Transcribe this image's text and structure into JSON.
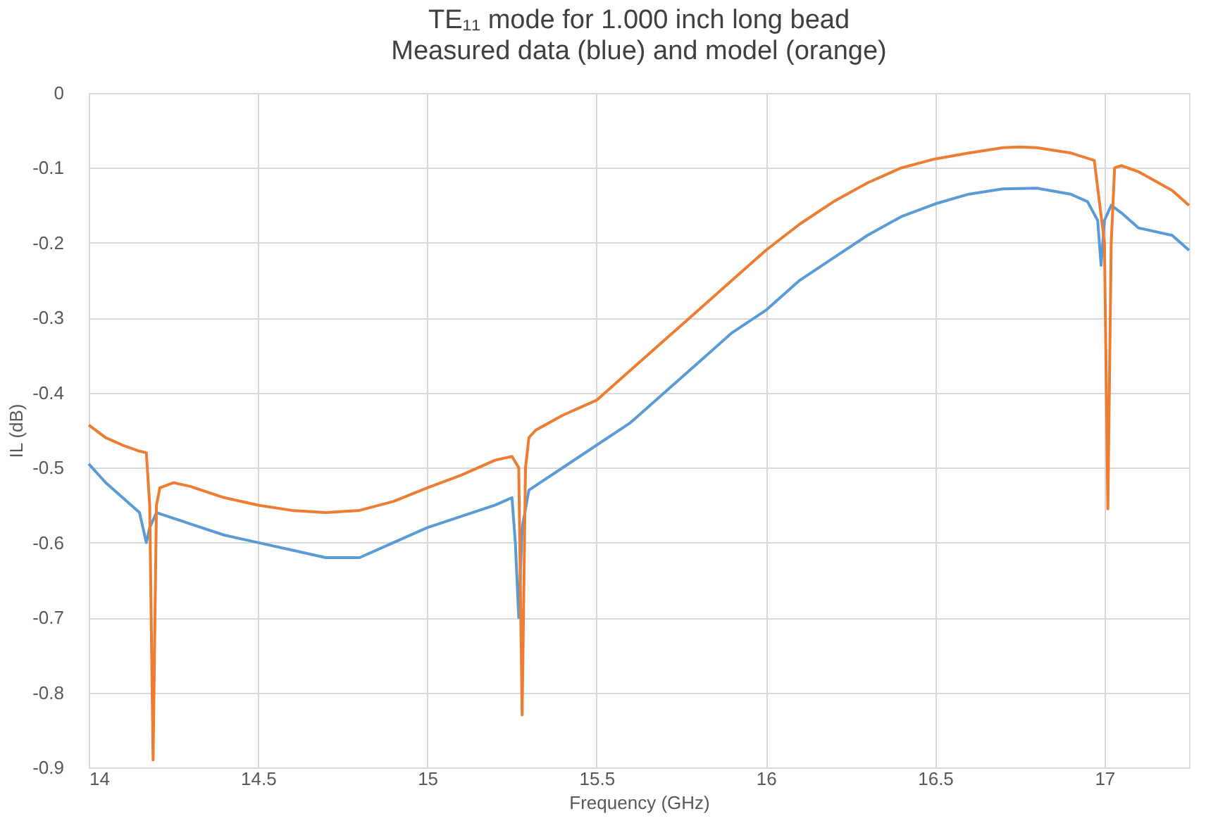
{
  "chart_data": {
    "type": "line",
    "title": "TE₁₁ mode for 1.000 inch long bead",
    "subtitle": "Measured data (blue) and model (orange)",
    "xlabel": "Frequency (GHz)",
    "ylabel": "IL (dB)",
    "xlim": [
      14,
      17.25
    ],
    "xticks": [
      14,
      14.5,
      15,
      15.5,
      16,
      16.5,
      17
    ],
    "ylim": [
      -0.9,
      0
    ],
    "yticks": [
      -0.9,
      -0.8,
      -0.7,
      -0.6,
      -0.5,
      -0.4,
      -0.3,
      -0.2,
      -0.1,
      0
    ],
    "grid": true,
    "marker": "none",
    "line_style": "solid",
    "series": [
      {
        "color": "#5b9bd5",
        "x": [
          14,
          14.05,
          14.1,
          14.15,
          14.16,
          14.17,
          14.18,
          14.2,
          14.3,
          14.4,
          14.5,
          14.6,
          14.7,
          14.8,
          14.9,
          15,
          15.1,
          15.2,
          15.25,
          15.26,
          15.27,
          15.28,
          15.3,
          15.4,
          15.5,
          15.6,
          15.7,
          15.8,
          15.9,
          16,
          16.1,
          16.2,
          16.3,
          16.4,
          16.5,
          16.6,
          16.7,
          16.8,
          16.9,
          16.95,
          16.98,
          16.99,
          17.0,
          17.02,
          17.05,
          17.1,
          17.2,
          17.25
        ],
        "values": [
          -0.495,
          -0.52,
          -0.54,
          -0.56,
          -0.58,
          -0.6,
          -0.58,
          -0.56,
          -0.575,
          -0.59,
          -0.6,
          -0.61,
          -0.62,
          -0.62,
          -0.6,
          -0.58,
          -0.565,
          -0.55,
          -0.54,
          -0.6,
          -0.7,
          -0.58,
          -0.53,
          -0.5,
          -0.47,
          -0.44,
          -0.4,
          -0.36,
          -0.32,
          -0.29,
          -0.25,
          -0.22,
          -0.19,
          -0.165,
          -0.148,
          -0.135,
          -0.128,
          -0.127,
          -0.135,
          -0.145,
          -0.17,
          -0.23,
          -0.17,
          -0.15,
          -0.16,
          -0.18,
          -0.19,
          -0.21
        ]
      },
      {
        "color": "#ed7d31",
        "x": [
          14,
          14.05,
          14.1,
          14.15,
          14.17,
          14.18,
          14.19,
          14.2,
          14.21,
          14.25,
          14.3,
          14.4,
          14.5,
          14.6,
          14.7,
          14.8,
          14.9,
          15,
          15.1,
          15.2,
          15.25,
          15.27,
          15.28,
          15.29,
          15.3,
          15.32,
          15.4,
          15.5,
          15.6,
          15.7,
          15.8,
          15.9,
          16,
          16.1,
          16.2,
          16.3,
          16.4,
          16.5,
          16.6,
          16.7,
          16.75,
          16.8,
          16.9,
          16.97,
          17.0,
          17.01,
          17.02,
          17.03,
          17.05,
          17.1,
          17.2,
          17.25
        ],
        "values": [
          -0.443,
          -0.46,
          -0.47,
          -0.478,
          -0.48,
          -0.55,
          -0.89,
          -0.55,
          -0.527,
          -0.52,
          -0.525,
          -0.54,
          -0.55,
          -0.557,
          -0.56,
          -0.557,
          -0.545,
          -0.527,
          -0.51,
          -0.49,
          -0.485,
          -0.5,
          -0.83,
          -0.5,
          -0.46,
          -0.45,
          -0.43,
          -0.41,
          -0.37,
          -0.33,
          -0.29,
          -0.25,
          -0.21,
          -0.175,
          -0.145,
          -0.12,
          -0.1,
          -0.088,
          -0.08,
          -0.073,
          -0.072,
          -0.073,
          -0.08,
          -0.09,
          -0.2,
          -0.555,
          -0.2,
          -0.1,
          -0.097,
          -0.105,
          -0.13,
          -0.15
        ]
      }
    ]
  }
}
